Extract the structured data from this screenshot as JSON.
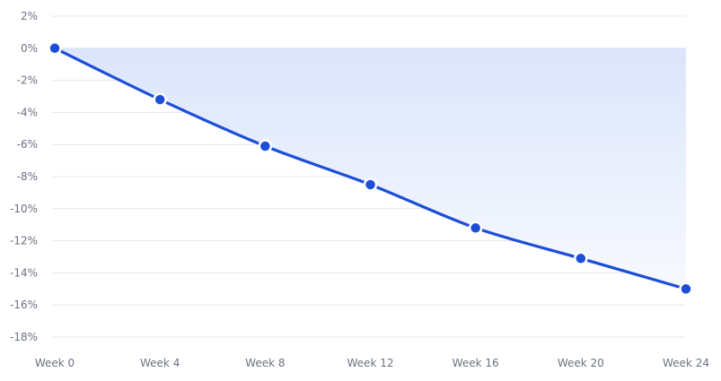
{
  "chart_data": {
    "type": "area",
    "title": "",
    "xlabel": "",
    "ylabel": "",
    "categories": [
      "Week 0",
      "Week 4",
      "Week 8",
      "Week 12",
      "Week 16",
      "Week 20",
      "Week 24"
    ],
    "series": [
      {
        "values": [
          0,
          -3.2,
          -6.1,
          -8.5,
          -11.2,
          -13.1,
          -15.0
        ]
      }
    ],
    "ylim": [
      -18,
      2
    ],
    "yticks": [
      2,
      0,
      -2,
      -4,
      -6,
      -8,
      -10,
      -12,
      -14,
      -16,
      -18
    ],
    "ytick_labels": [
      "2%",
      "0%",
      "-2%",
      "-4%",
      "-6%",
      "-8%",
      "-10%",
      "-12%",
      "-14%",
      "-16%",
      "-18%"
    ],
    "grid": true,
    "colors": {
      "line": "#1d4ed8",
      "fill": "#dbe6fb"
    }
  }
}
